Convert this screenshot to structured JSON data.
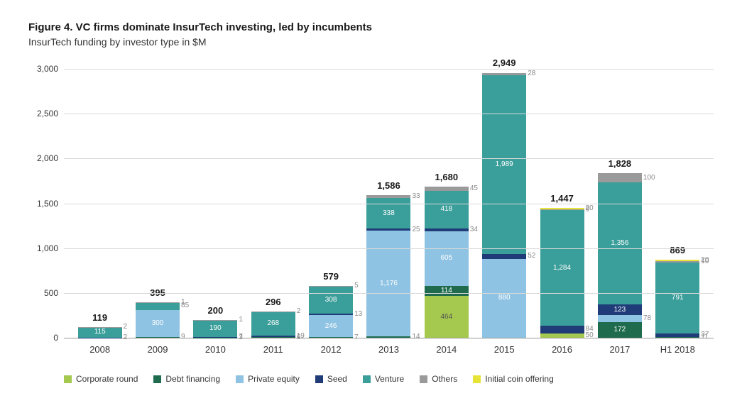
{
  "title": "Figure 4. VC firms dominate InsurTech investing, led by incumbents",
  "subtitle": "InsurTech funding by investor type in $M",
  "chart": {
    "type": "stacked-bar",
    "ylim": [
      0,
      3000
    ],
    "ytick_step": 500,
    "yticks": [
      "0",
      "500",
      "1,000",
      "1,500",
      "2,000",
      "2,500",
      "3,000"
    ],
    "grid_color": "#d9d9d9",
    "background_color": "#ffffff",
    "label_fontsize": 12,
    "total_fontsize": 13,
    "series": [
      {
        "key": "corporate",
        "label": "Corporate round",
        "color": "#a5c84f"
      },
      {
        "key": "debt",
        "label": "Debt financing",
        "color": "#1e6b4e"
      },
      {
        "key": "pe",
        "label": "Private equity",
        "color": "#8fc3e3"
      },
      {
        "key": "seed",
        "label": "Seed",
        "color": "#1f3b78"
      },
      {
        "key": "venture",
        "label": "Venture",
        "color": "#3a9e9a"
      },
      {
        "key": "others",
        "label": "Others",
        "color": "#9a9a9a"
      },
      {
        "key": "ico",
        "label": "Initial coin offering",
        "color": "#e8e337"
      }
    ],
    "categories": [
      "2008",
      "2009",
      "2010",
      "2011",
      "2012",
      "2013",
      "2014",
      "2015",
      "2016",
      "2017",
      "H1 2018"
    ],
    "totals": [
      "119",
      "395",
      "200",
      "296",
      "579",
      "1,586",
      "1,680",
      "2,949",
      "1,447",
      "1,828",
      "869"
    ],
    "data": [
      {
        "corporate": 0,
        "debt": 0,
        "pe": 0,
        "seed": 2,
        "venture": 115,
        "others": 2,
        "ico": 0,
        "labels": {
          "venture": "115",
          "seed": "2",
          "others": "2"
        }
      },
      {
        "corporate": 0,
        "debt": 9,
        "pe": 300,
        "seed": 0,
        "venture": 85,
        "others": 1,
        "ico": 0,
        "labels": {
          "pe": "300",
          "venture": "85",
          "debt": "9",
          "others": "1"
        }
      },
      {
        "corporate": 0,
        "debt": 3,
        "pe": 0,
        "seed": 7,
        "venture": 190,
        "others": 1,
        "ico": 0,
        "labels": {
          "venture": "190",
          "seed": "7",
          "debt": "3",
          "others": "1"
        }
      },
      {
        "corporate": 0,
        "debt": 6,
        "pe": 0,
        "seed": 19,
        "venture": 268,
        "others": 2,
        "ico": 0,
        "labels": {
          "venture": "268",
          "seed": "19",
          "debt": "6",
          "others": "2"
        }
      },
      {
        "corporate": 0,
        "debt": 7,
        "pe": 246,
        "seed": 13,
        "venture": 308,
        "others": 5,
        "ico": 0,
        "labels": {
          "pe": "246",
          "seed": "13",
          "venture": "308",
          "debt": "7",
          "others": "5"
        }
      },
      {
        "corporate": 0,
        "debt": 14,
        "pe": 1176,
        "seed": 25,
        "venture": 338,
        "others": 33,
        "ico": 0,
        "labels": {
          "pe": "1,176",
          "seed": "25",
          "venture": "338",
          "others": "33",
          "debt": "14"
        }
      },
      {
        "corporate": 464,
        "debt": 114,
        "pe": 605,
        "seed": 34,
        "venture": 418,
        "others": 45,
        "ico": 0,
        "labels": {
          "corporate": "464",
          "debt": "114",
          "pe": "605",
          "seed": "34",
          "venture": "418",
          "others": "45"
        }
      },
      {
        "corporate": 0,
        "debt": 0,
        "pe": 880,
        "seed": 52,
        "venture": 1989,
        "others": 28,
        "ico": 0,
        "labels": {
          "pe": "880",
          "seed": "52",
          "venture": "1,989",
          "others": "28"
        }
      },
      {
        "corporate": 50,
        "debt": 0,
        "pe": 0,
        "seed": 84,
        "venture": 1284,
        "others": 9,
        "ico": 20,
        "labels": {
          "corporate": "50",
          "seed": "84",
          "venture": "1,284",
          "others": "9",
          "ico": "20"
        }
      },
      {
        "corporate": 0,
        "debt": 172,
        "pe": 78,
        "seed": 123,
        "venture": 1356,
        "others": 100,
        "ico": 0,
        "labels": {
          "debt": "172",
          "pe": "78",
          "seed": "123",
          "venture": "1,356",
          "others": "100"
        }
      },
      {
        "corporate": 0,
        "debt": 11,
        "pe": 0,
        "seed": 37,
        "venture": 791,
        "others": 10,
        "ico": 20,
        "labels": {
          "debt": "11",
          "seed": "37",
          "venture": "791",
          "others": "10",
          "ico": "20"
        }
      }
    ]
  }
}
